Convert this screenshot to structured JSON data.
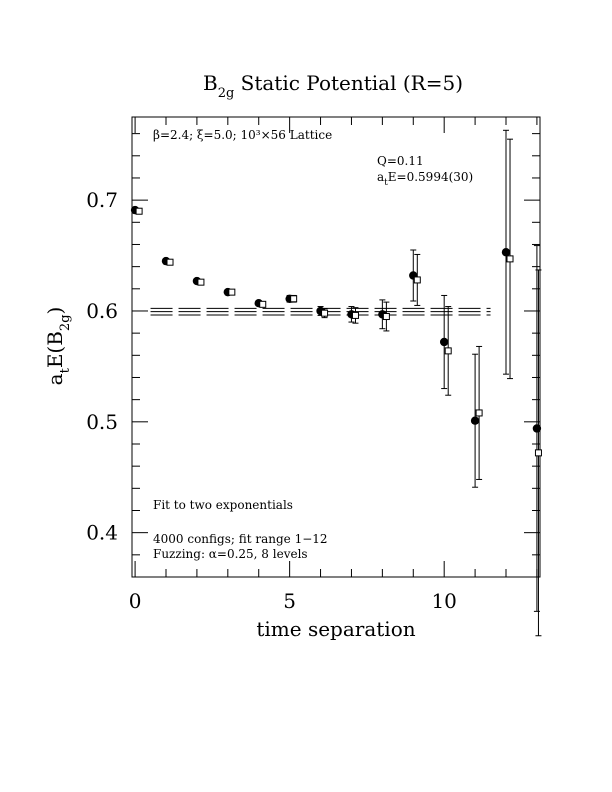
{
  "chart_data": {
    "type": "scatter",
    "title_main": "B",
    "title_sub": "2g",
    "title_rest": " Static Potential (R=5)",
    "annotation_top": "β=2.4; ξ=5.0; 10³×56 Lattice",
    "fit_q": "Q=0.11",
    "fit_e_prefix": "a",
    "fit_e_sub": "t",
    "fit_e_rest": "E=0.5994(30)",
    "note_fit": "Fit to two exponentials",
    "note_configs": "4000 configs; fit range 1−12",
    "note_fuzzing": "Fuzzing: α=0.25, 8 levels",
    "xlabel": "time separation",
    "ylabel_a": "a",
    "ylabel_t": "t",
    "ylabel_e": "E(B",
    "ylabel_sub": "2g",
    "ylabel_close": ")",
    "xlim": [
      -0.1,
      13.1
    ],
    "ylim": [
      0.36,
      0.775
    ],
    "x_ticks": [
      0,
      5,
      10
    ],
    "x_tick_labels": [
      "0",
      "5",
      "10"
    ],
    "y_ticks": [
      0.4,
      0.5,
      0.6,
      0.7
    ],
    "y_tick_labels": [
      "0.4",
      "0.5",
      "0.6",
      "0.7"
    ],
    "fit": {
      "value": 0.5994,
      "error": 0.003,
      "x_range": [
        0.5,
        11.5
      ]
    },
    "series": [
      {
        "marker": "filled-circle",
        "points": [
          {
            "x": 0,
            "y": 0.691,
            "err": 0.001
          },
          {
            "x": 1,
            "y": 0.645,
            "err": 0.001
          },
          {
            "x": 2,
            "y": 0.627,
            "err": 0.002
          },
          {
            "x": 3,
            "y": 0.617,
            "err": 0.002
          },
          {
            "x": 4,
            "y": 0.607,
            "err": 0.002
          },
          {
            "x": 5,
            "y": 0.611,
            "err": 0.003
          },
          {
            "x": 6,
            "y": 0.6,
            "err": 0.004
          },
          {
            "x": 7,
            "y": 0.597,
            "err": 0.007
          },
          {
            "x": 8,
            "y": 0.597,
            "err": 0.013
          },
          {
            "x": 9,
            "y": 0.632,
            "err": 0.023
          },
          {
            "x": 10,
            "y": 0.572,
            "err": 0.042
          },
          {
            "x": 11,
            "y": 0.501,
            "err": 0.06
          },
          {
            "x": 12,
            "y": 0.653,
            "err": 0.11
          },
          {
            "x": 13,
            "y": 0.494,
            "err": 0.165
          }
        ]
      },
      {
        "marker": "open-square",
        "points": [
          {
            "x": 0.13,
            "y": 0.69,
            "err": 0.001
          },
          {
            "x": 1.13,
            "y": 0.644,
            "err": 0.001
          },
          {
            "x": 2.13,
            "y": 0.626,
            "err": 0.002
          },
          {
            "x": 3.13,
            "y": 0.617,
            "err": 0.002
          },
          {
            "x": 4.13,
            "y": 0.606,
            "err": 0.002
          },
          {
            "x": 5.13,
            "y": 0.611,
            "err": 0.003
          },
          {
            "x": 6.13,
            "y": 0.598,
            "err": 0.004
          },
          {
            "x": 7.13,
            "y": 0.596,
            "err": 0.007
          },
          {
            "x": 8.13,
            "y": 0.595,
            "err": 0.013
          },
          {
            "x": 9.13,
            "y": 0.628,
            "err": 0.023
          },
          {
            "x": 10.13,
            "y": 0.564,
            "err": 0.04
          },
          {
            "x": 11.13,
            "y": 0.508,
            "err": 0.06
          },
          {
            "x": 12.13,
            "y": 0.647,
            "err": 0.108
          },
          {
            "x": 13.05,
            "y": 0.472,
            "err": 0.165
          }
        ]
      }
    ]
  }
}
